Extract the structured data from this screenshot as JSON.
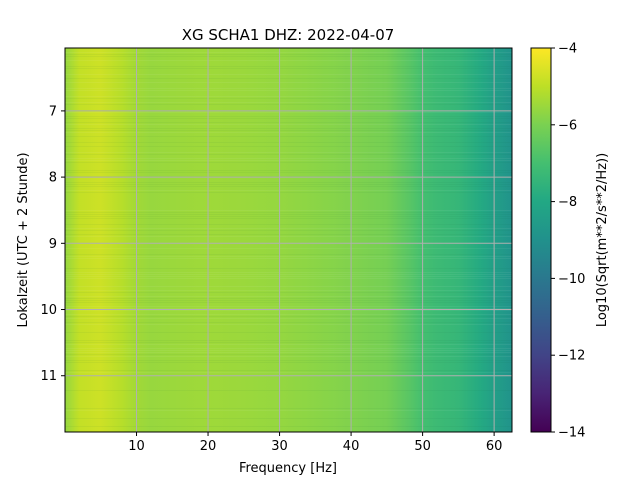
{
  "chart_data": {
    "type": "heatmap",
    "title": "XG SCHA1  DHZ: 2022-04-07",
    "xlabel": "Frequency [Hz]",
    "ylabel": "Lokalzeit (UTC + 2 Stunde)",
    "xlim": [
      0,
      62.5
    ],
    "ylim": [
      11.85,
      6.05
    ],
    "y_axis_inverted": true,
    "x_ticks": [
      {
        "value": 10,
        "label": "10"
      },
      {
        "value": 20,
        "label": "20"
      },
      {
        "value": 30,
        "label": "30"
      },
      {
        "value": 40,
        "label": "40"
      },
      {
        "value": 50,
        "label": "50"
      },
      {
        "value": 60,
        "label": "60"
      }
    ],
    "y_ticks": [
      {
        "value": 7,
        "label": "7"
      },
      {
        "value": 8,
        "label": "8"
      },
      {
        "value": 9,
        "label": "9"
      },
      {
        "value": 10,
        "label": "10"
      },
      {
        "value": 11,
        "label": "11"
      }
    ],
    "grid": true,
    "colormap": "viridis",
    "colorbar": {
      "label": "Log10(Sqrt(m**2/s**2/Hz))",
      "range": [
        -14,
        -4
      ],
      "ticks": [
        {
          "value": -4,
          "label": "−4"
        },
        {
          "value": -6,
          "label": "−6"
        },
        {
          "value": -8,
          "label": "−8"
        },
        {
          "value": -10,
          "label": "−10"
        },
        {
          "value": -12,
          "label": "−12"
        },
        {
          "value": -14,
          "label": "−14"
        }
      ]
    },
    "spectrum_profile": {
      "frequency_hz": [
        0,
        2,
        5,
        8,
        10,
        12,
        15,
        20,
        25,
        30,
        35,
        40,
        45,
        48,
        50,
        52,
        55,
        58,
        60,
        62.5
      ],
      "log10_amplitude": [
        -5.6,
        -4.9,
        -4.75,
        -5.1,
        -5.4,
        -5.55,
        -5.5,
        -5.45,
        -5.5,
        -5.6,
        -5.75,
        -5.9,
        -6.1,
        -6.6,
        -7.0,
        -7.2,
        -7.4,
        -7.9,
        -8.4,
        -8.9
      ]
    }
  }
}
